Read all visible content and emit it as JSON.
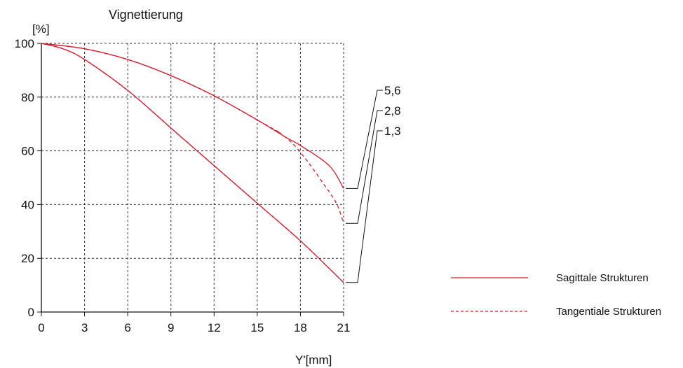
{
  "chart_data": {
    "type": "line",
    "title": "Vignettierung",
    "ylabel": "[%]",
    "xlabel": "Y'[mm]",
    "xlim": [
      0,
      21
    ],
    "ylim": [
      0,
      100
    ],
    "x_ticks": [
      0,
      3,
      6,
      9,
      12,
      15,
      18,
      21
    ],
    "y_ticks": [
      0,
      20,
      40,
      60,
      80,
      100
    ],
    "grid": true,
    "color": "#d7192a",
    "series": [
      {
        "aperture": "5,6",
        "style": "sagittal",
        "x": [
          0,
          3,
          6,
          9,
          12,
          15,
          17,
          18,
          20,
          21
        ],
        "y": [
          100,
          98,
          94,
          88,
          80.5,
          71.5,
          65,
          62,
          54.5,
          46
        ]
      },
      {
        "aperture": "5,6",
        "style": "tangential",
        "x": [
          0,
          3,
          6,
          9,
          12,
          15,
          16.5
        ],
        "y": [
          100,
          98,
          94,
          88,
          80.5,
          71.5,
          67
        ]
      },
      {
        "aperture": "2,8",
        "style": "tangential",
        "x": [
          16.5,
          17.5,
          18.5,
          19.5,
          20.5,
          21
        ],
        "y": [
          67,
          62.5,
          56,
          48.5,
          40.5,
          33
        ]
      },
      {
        "aperture": "1,3",
        "style": "sagittal",
        "x": [
          0,
          1.5,
          3,
          6,
          9,
          12,
          15,
          18,
          21
        ],
        "y": [
          100,
          98,
          94,
          82.5,
          68.5,
          54.5,
          40.5,
          26.5,
          11
        ]
      },
      {
        "aperture": "1,3",
        "style": "tangential",
        "x": [
          0,
          1.5,
          3,
          6,
          9,
          12,
          15,
          18,
          21
        ],
        "y": [
          100,
          98,
          94,
          82.5,
          68.5,
          54.5,
          40.5,
          26.5,
          11
        ]
      }
    ],
    "aperture_labels": [
      {
        "label": "5,6",
        "end_y": 46
      },
      {
        "label": "2,8",
        "end_y": 33
      },
      {
        "label": "1,3",
        "end_y": 11
      }
    ],
    "legend": {
      "position": "bottom-right",
      "items": [
        {
          "label": "Sagittale Strukturen",
          "style": "solid"
        },
        {
          "label": "Tangentiale Strukturen",
          "style": "dashed"
        }
      ]
    }
  }
}
